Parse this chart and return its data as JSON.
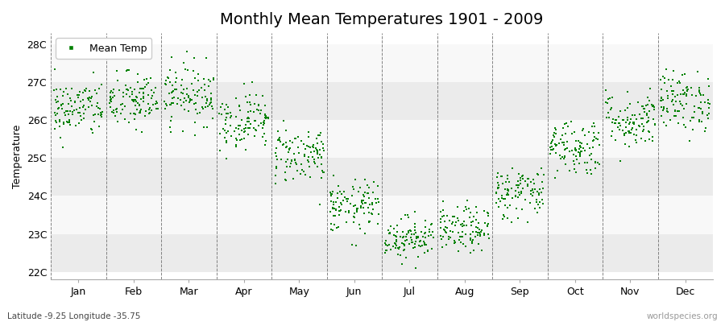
{
  "title": "Monthly Mean Temperatures 1901 - 2009",
  "ylabel": "Temperature",
  "xlabel_bottom_left": "Latitude -9.25 Longitude -35.75",
  "xlabel_bottom_right": "worldspecies.org",
  "legend_label": "Mean Temp",
  "dot_color": "#008000",
  "ylim": [
    21.8,
    28.3
  ],
  "yticks": [
    22,
    23,
    24,
    25,
    26,
    27,
    28
  ],
  "ytick_labels": [
    "22C",
    "23C",
    "24C",
    "25C",
    "26C",
    "27C",
    "28C"
  ],
  "months": [
    "Jan",
    "Feb",
    "Mar",
    "Apr",
    "May",
    "Jun",
    "Jul",
    "Aug",
    "Sep",
    "Oct",
    "Nov",
    "Dec"
  ],
  "month_means": [
    26.3,
    26.5,
    26.7,
    26.0,
    25.1,
    23.7,
    22.9,
    23.1,
    24.1,
    25.3,
    26.0,
    26.5
  ],
  "month_stds": [
    0.38,
    0.38,
    0.4,
    0.38,
    0.38,
    0.35,
    0.28,
    0.3,
    0.35,
    0.38,
    0.38,
    0.4
  ],
  "n_years": 109,
  "seed": 42,
  "band_colors": [
    "#ebebeb",
    "#f8f8f8"
  ],
  "background_color": "#ffffff",
  "vline_color": "#666666",
  "title_fontsize": 14,
  "tick_fontsize": 9,
  "label_fontsize": 9,
  "dot_size": 3,
  "marker": "s"
}
